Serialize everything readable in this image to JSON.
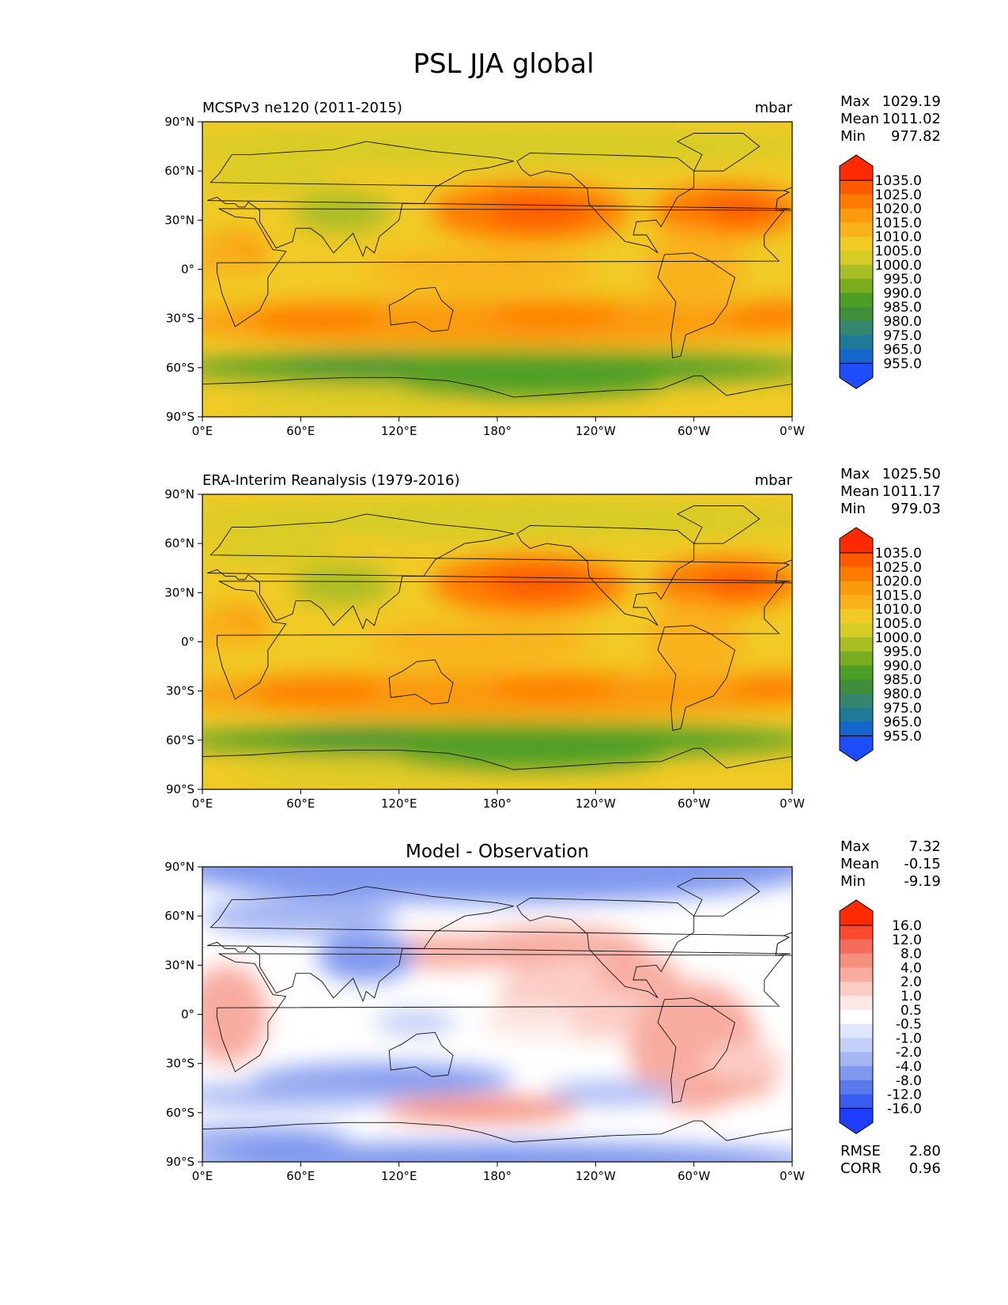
{
  "title": "PSL JJA global",
  "x_ticks": [
    "0°E",
    "60°E",
    "120°E",
    "180°",
    "120°W",
    "60°W",
    "0°W"
  ],
  "y_ticks": [
    "90°N",
    "60°N",
    "30°N",
    "0°",
    "30°S",
    "60°S",
    "90°S"
  ],
  "panels": [
    {
      "id": "model",
      "left_title": "MCSPv3 ne120 (2011-2015)",
      "center_title": "",
      "units": "mbar",
      "stats": [
        {
          "label": "Max",
          "value": "1029.19"
        },
        {
          "label": "Mean",
          "value": "1011.02"
        },
        {
          "label": "Min",
          "value": "977.82"
        }
      ],
      "colorbar": {
        "labels": [
          "1035.0",
          "1025.0",
          "1020.0",
          "1015.0",
          "1010.0",
          "1005.0",
          "1000.0",
          "995.0",
          "990.0",
          "985.0",
          "980.0",
          "975.0",
          "965.0",
          "955.0"
        ],
        "colors": [
          "#ff2a00",
          "#ff5a00",
          "#ff7a00",
          "#fb9a0c",
          "#f9b21b",
          "#f1ca26",
          "#d6cc26",
          "#a9bd26",
          "#79ad1f",
          "#4d9e26",
          "#3f8f3a",
          "#35866f",
          "#1f7a99",
          "#1466cc",
          "#1e4dff"
        ]
      },
      "field": "psl"
    },
    {
      "id": "obs",
      "left_title": "ERA-Interim Reanalysis (1979-2016)",
      "center_title": "",
      "units": "mbar",
      "stats": [
        {
          "label": "Max",
          "value": "1025.50"
        },
        {
          "label": "Mean",
          "value": "1011.17"
        },
        {
          "label": "Min",
          "value": "979.03"
        }
      ],
      "colorbar": {
        "labels": [
          "1035.0",
          "1025.0",
          "1020.0",
          "1015.0",
          "1010.0",
          "1005.0",
          "1000.0",
          "995.0",
          "990.0",
          "985.0",
          "980.0",
          "975.0",
          "965.0",
          "955.0"
        ],
        "colors": [
          "#ff2a00",
          "#ff5a00",
          "#ff7a00",
          "#fb9a0c",
          "#f9b21b",
          "#f1ca26",
          "#d6cc26",
          "#a9bd26",
          "#79ad1f",
          "#4d9e26",
          "#3f8f3a",
          "#35866f",
          "#1f7a99",
          "#1466cc",
          "#1e4dff"
        ]
      },
      "field": "psl"
    },
    {
      "id": "diff",
      "left_title": "",
      "center_title": "Model - Observation",
      "units": "",
      "stats": [
        {
          "label": "Max",
          "value": "7.32"
        },
        {
          "label": "Mean",
          "value": "-0.15"
        },
        {
          "label": "Min",
          "value": "-9.19"
        }
      ],
      "extra_stats": [
        {
          "label": "RMSE",
          "value": "2.80"
        },
        {
          "label": "CORR",
          "value": "0.96"
        }
      ],
      "colorbar": {
        "labels": [
          "16.0",
          "12.0",
          "8.0",
          "4.0",
          "2.0",
          "1.0",
          "0.5",
          "-0.5",
          "-1.0",
          "-2.0",
          "-4.0",
          "-8.0",
          "-12.0",
          "-16.0"
        ],
        "colors": [
          "#ff2a00",
          "#ff4a30",
          "#f56c5a",
          "#f5907e",
          "#f8aca0",
          "#fbcdc6",
          "#fde8e5",
          "#ffffff",
          "#dfe5fb",
          "#c4cff7",
          "#a5b6f3",
          "#8098ee",
          "#5b79ea",
          "#3a5df0",
          "#1e3dff"
        ]
      },
      "field": "diff"
    }
  ]
}
